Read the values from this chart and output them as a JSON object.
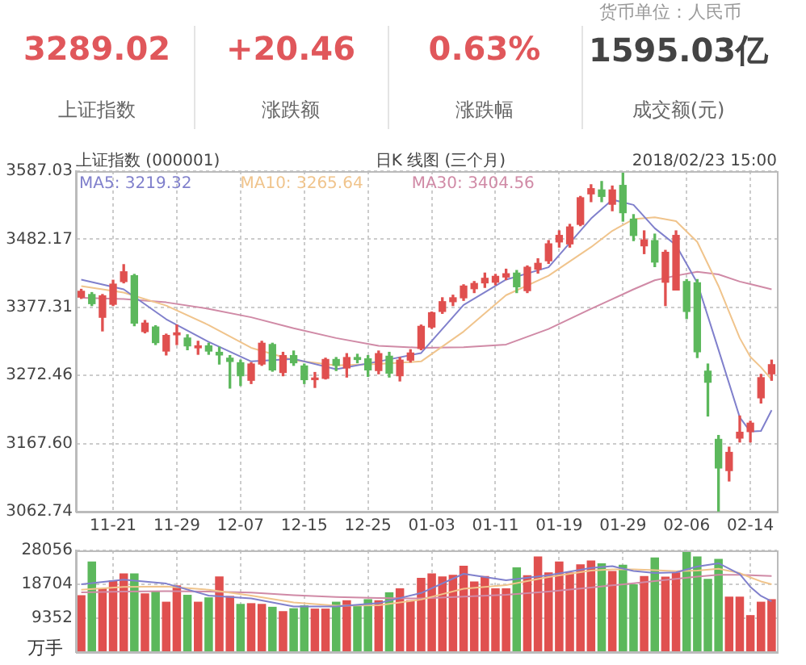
{
  "chart_data": [
    {
      "type": "other",
      "categories": [
        "上证指数",
        "涨跌额",
        "涨跌幅",
        "成交额(元)"
      ],
      "value_labels": [
        "3289.02",
        "+20.46",
        "0.63%",
        "1595.03亿"
      ],
      "colors": [
        "#e0575b",
        "#e0575b",
        "#e0575b",
        "#444444"
      ],
      "annotations": [
        "货币单位：人民币"
      ]
    },
    {
      "type": "candlestick",
      "title": "上证指数 (000001)",
      "subtitle": "日K 线图 (三个月)",
      "annotations": [
        "2018/02/23 15:00"
      ],
      "categories": [
        null,
        null,
        null,
        "11-21",
        null,
        null,
        null,
        null,
        null,
        "11-29",
        null,
        null,
        null,
        null,
        null,
        "12-07",
        null,
        null,
        null,
        null,
        null,
        "12-15",
        null,
        null,
        null,
        null,
        null,
        "12-25",
        null,
        null,
        null,
        null,
        null,
        "01-03",
        null,
        null,
        null,
        null,
        null,
        "01-11",
        null,
        null,
        null,
        null,
        null,
        "01-19",
        null,
        null,
        null,
        null,
        null,
        "01-29",
        null,
        null,
        null,
        null,
        null,
        "02-06",
        null,
        null,
        null,
        null,
        null,
        "02-14",
        null,
        null
      ],
      "ohlc": [
        [
          3393,
          3405,
          3391,
          3402
        ],
        [
          3397,
          3400,
          3380,
          3383
        ],
        [
          3362,
          3397,
          3341,
          3395
        ],
        [
          3382,
          3419,
          3380,
          3413
        ],
        [
          3417,
          3443,
          3415,
          3432
        ],
        [
          3426,
          3428,
          3349,
          3353
        ],
        [
          3340,
          3357,
          3338,
          3353
        ],
        [
          3347,
          3349,
          3320,
          3323
        ],
        [
          3310,
          3336,
          3304,
          3334
        ],
        [
          3335,
          3350,
          3320,
          3338
        ],
        [
          3330,
          3335,
          3312,
          3318
        ],
        [
          3315,
          3325,
          3305,
          3318
        ],
        [
          3318,
          3322,
          3305,
          3310
        ],
        [
          3308,
          3316,
          3290,
          3304
        ],
        [
          3299,
          3303,
          3253,
          3294
        ],
        [
          3292,
          3296,
          3257,
          3272
        ],
        [
          3265,
          3292,
          3260,
          3290
        ],
        [
          3290,
          3325,
          3288,
          3322
        ],
        [
          3320,
          3322,
          3279,
          3281
        ],
        [
          3277,
          3308,
          3272,
          3303
        ],
        [
          3303,
          3310,
          3288,
          3292
        ],
        [
          3287,
          3290,
          3260,
          3266
        ],
        [
          3266,
          3277,
          3254,
          3268
        ],
        [
          3268,
          3299,
          3267,
          3297
        ],
        [
          3297,
          3300,
          3280,
          3288
        ],
        [
          3284,
          3306,
          3270,
          3300
        ],
        [
          3300,
          3305,
          3292,
          3297
        ],
        [
          3298,
          3303,
          3271,
          3281
        ],
        [
          3280,
          3310,
          3275,
          3306
        ],
        [
          3302,
          3308,
          3270,
          3276
        ],
        [
          3272,
          3300,
          3264,
          3296
        ],
        [
          3296,
          3312,
          3293,
          3307
        ],
        [
          3314,
          3350,
          3312,
          3348
        ],
        [
          3347,
          3370,
          3345,
          3369
        ],
        [
          3371,
          3392,
          3368,
          3386
        ],
        [
          3386,
          3396,
          3380,
          3392
        ],
        [
          3392,
          3412,
          3388,
          3410
        ],
        [
          3406,
          3417,
          3400,
          3414
        ],
        [
          3415,
          3430,
          3408,
          3422
        ],
        [
          3416,
          3428,
          3412,
          3425
        ],
        [
          3424,
          3436,
          3420,
          3429
        ],
        [
          3430,
          3434,
          3400,
          3409
        ],
        [
          3403,
          3441,
          3400,
          3439
        ],
        [
          3436,
          3452,
          3430,
          3445
        ],
        [
          3449,
          3480,
          3445,
          3475
        ],
        [
          3478,
          3495,
          3470,
          3488
        ],
        [
          3475,
          3505,
          3470,
          3501
        ],
        [
          3505,
          3548,
          3503,
          3546
        ],
        [
          3552,
          3566,
          3540,
          3560
        ],
        [
          3558,
          3571,
          3540,
          3548
        ],
        [
          3536,
          3564,
          3526,
          3558
        ],
        [
          3565,
          3586,
          3510,
          3523
        ],
        [
          3513,
          3520,
          3480,
          3488
        ],
        [
          3472,
          3495,
          3460,
          3481
        ],
        [
          3480,
          3490,
          3440,
          3447
        ],
        [
          3416,
          3465,
          3380,
          3462
        ],
        [
          3404,
          3495,
          3404,
          3488
        ],
        [
          3417,
          3420,
          3360,
          3371
        ],
        [
          3415,
          3420,
          3300,
          3309
        ],
        [
          3279,
          3290,
          3210,
          3262
        ],
        [
          3174,
          3180,
          3063,
          3130
        ],
        [
          3126,
          3162,
          3110,
          3154
        ],
        [
          3176,
          3210,
          3170,
          3185
        ],
        [
          3186,
          3202,
          3170,
          3199
        ],
        [
          3238,
          3274,
          3230,
          3269
        ],
        [
          3275,
          3296,
          3265,
          3289
        ]
      ],
      "colors": [
        "#e0504f",
        "#5cb85c",
        "#e0504f",
        "#e0504f",
        "#e0504f",
        "#5cb85c",
        "#e0504f",
        "#5cb85c",
        "#e0504f",
        "#e0504f",
        "#5cb85c",
        "#e0504f",
        "#5cb85c",
        "#5cb85c",
        "#5cb85c",
        "#5cb85c",
        "#e0504f",
        "#e0504f",
        "#5cb85c",
        "#e0504f",
        "#5cb85c",
        "#5cb85c",
        "#e0504f",
        "#e0504f",
        "#5cb85c",
        "#e0504f",
        "#5cb85c",
        "#5cb85c",
        "#e0504f",
        "#5cb85c",
        "#e0504f",
        "#e0504f",
        "#e0504f",
        "#e0504f",
        "#e0504f",
        "#e0504f",
        "#e0504f",
        "#e0504f",
        "#e0504f",
        "#e0504f",
        "#e0504f",
        "#5cb85c",
        "#e0504f",
        "#e0504f",
        "#e0504f",
        "#e0504f",
        "#e0504f",
        "#e0504f",
        "#e0504f",
        "#5cb85c",
        "#e0504f",
        "#5cb85c",
        "#5cb85c",
        "#e0504f",
        "#5cb85c",
        "#e0504f",
        "#e0504f",
        "#5cb85c",
        "#5cb85c",
        "#5cb85c",
        "#5cb85c",
        "#e0504f",
        "#e0504f",
        "#e0504f",
        "#e0504f",
        "#e0504f"
      ],
      "series": [
        {
          "type": "line",
          "name": "MA5: 3219.32",
          "color": "#8080cc",
          "values": [
            3420,
            null,
            null,
            null,
            3405,
            null,
            null,
            null,
            3359,
            null,
            null,
            null,
            3324,
            null,
            null,
            null,
            3294,
            null,
            null,
            null,
            3298,
            null,
            null,
            null,
            3282,
            null,
            null,
            null,
            3294,
            null,
            null,
            null,
            3307,
            null,
            null,
            null,
            3381,
            null,
            null,
            null,
            3420,
            null,
            null,
            null,
            3439,
            null,
            null,
            null,
            3514,
            null,
            3543,
            null,
            3535,
            null,
            3499,
            null,
            3473,
            null,
            3415,
            null,
            3312,
            null,
            3208,
            3186,
            3187,
            3219
          ]
        },
        {
          "type": "line",
          "name": "MA10: 3265.64",
          "color": "#f0c48c",
          "values": [
            3410,
            null,
            null,
            null,
            3400,
            null,
            null,
            null,
            3380,
            null,
            null,
            null,
            3350,
            null,
            null,
            null,
            3315,
            null,
            null,
            null,
            3296,
            null,
            null,
            null,
            3288,
            null,
            null,
            null,
            3290,
            null,
            null,
            null,
            3294,
            null,
            null,
            null,
            3340,
            null,
            null,
            null,
            3396,
            null,
            null,
            null,
            3426,
            null,
            null,
            null,
            3470,
            null,
            3495,
            null,
            3513,
            null,
            3516,
            null,
            3510,
            null,
            3478,
            null,
            3410,
            null,
            3330,
            3301,
            3285,
            3266
          ]
        },
        {
          "type": "line",
          "name": "MA30: 3404.56",
          "color": "#d08aa6",
          "values": [
            3392,
            null,
            null,
            null,
            3390,
            null,
            null,
            null,
            3385,
            null,
            null,
            null,
            3375,
            null,
            null,
            null,
            3362,
            null,
            null,
            null,
            3345,
            null,
            null,
            null,
            3330,
            null,
            null,
            null,
            3318,
            null,
            null,
            null,
            3315,
            null,
            null,
            null,
            3316,
            null,
            null,
            null,
            3320,
            null,
            null,
            null,
            3344,
            null,
            null,
            null,
            3375,
            null,
            3390,
            null,
            3405,
            null,
            3419,
            null,
            3426,
            null,
            3432,
            null,
            3428,
            null,
            3417,
            3413,
            3409,
            3405
          ]
        }
      ],
      "ylim": [
        3062.74,
        3587.03
      ],
      "yticks": [
        3062.74,
        {
          "value": 3167.6,
          "label": "3167.60"
        },
        3272.46,
        3377.31,
        3482.17,
        3587.03
      ],
      "grid": true
    },
    {
      "type": "bar",
      "ylabel": "万手",
      "categories": [
        null,
        null,
        null,
        null,
        null,
        null,
        null,
        null,
        null,
        null,
        null,
        null,
        null,
        null,
        null,
        null,
        null,
        null,
        null,
        null,
        null,
        null,
        null,
        null,
        null,
        null,
        null,
        null,
        null,
        null,
        null,
        null,
        null,
        null,
        null,
        null,
        null,
        null,
        null,
        null,
        null,
        null,
        null,
        null,
        null,
        null,
        null,
        null,
        null,
        null,
        null,
        null,
        null,
        null,
        null,
        null,
        null,
        null,
        null,
        null,
        null,
        null,
        null,
        null,
        null,
        null
      ],
      "values": [
        15700,
        25000,
        17600,
        19800,
        21700,
        21700,
        16200,
        16900,
        13900,
        18400,
        15800,
        13900,
        15100,
        20900,
        15500,
        13300,
        13500,
        13300,
        12500,
        11300,
        12100,
        12900,
        12000,
        12000,
        13900,
        14300,
        12700,
        14600,
        14300,
        16500,
        17600,
        14300,
        20500,
        21700,
        20900,
        21300,
        23800,
        19500,
        21000,
        17600,
        17600,
        23400,
        21200,
        26400,
        22000,
        25000,
        22000,
        24200,
        25300,
        24500,
        22400,
        24100,
        18700,
        21000,
        26100,
        20800,
        22000,
        28000,
        26400,
        20200,
        25700,
        15300,
        15300,
        10200,
        13900,
        14600
      ],
      "colors": [
        "#e0504f",
        "#5cb85c",
        "#e0504f",
        "#e0504f",
        "#e0504f",
        "#5cb85c",
        "#e0504f",
        "#5cb85c",
        "#e0504f",
        "#e0504f",
        "#5cb85c",
        "#e0504f",
        "#5cb85c",
        "#e0504f",
        "#e0504f",
        "#5cb85c",
        "#e0504f",
        "#e0504f",
        "#5cb85c",
        "#e0504f",
        "#5cb85c",
        "#5cb85c",
        "#e0504f",
        "#e0504f",
        "#5cb85c",
        "#e0504f",
        "#5cb85c",
        "#5cb85c",
        "#e0504f",
        "#5cb85c",
        "#e0504f",
        "#e0504f",
        "#e0504f",
        "#e0504f",
        "#e0504f",
        "#e0504f",
        "#e0504f",
        "#e0504f",
        "#e0504f",
        "#e0504f",
        "#e0504f",
        "#5cb85c",
        "#e0504f",
        "#e0504f",
        "#e0504f",
        "#e0504f",
        "#e0504f",
        "#e0504f",
        "#e0504f",
        "#5cb85c",
        "#e0504f",
        "#5cb85c",
        "#5cb85c",
        "#e0504f",
        "#5cb85c",
        "#e0504f",
        "#e0504f",
        "#5cb85c",
        "#5cb85c",
        "#5cb85c",
        "#5cb85c",
        "#e0504f",
        "#e0504f",
        "#e0504f",
        "#e0504f",
        "#e0504f"
      ],
      "series": [
        {
          "type": "line",
          "color": "#8080cc",
          "values": [
            18700,
            null,
            null,
            null,
            20000,
            null,
            null,
            null,
            18900,
            null,
            null,
            null,
            15600,
            null,
            null,
            null,
            14800,
            null,
            null,
            null,
            12600,
            null,
            null,
            null,
            12600,
            null,
            null,
            null,
            13500,
            null,
            null,
            null,
            16300,
            null,
            null,
            null,
            21600,
            null,
            null,
            null,
            19800,
            null,
            null,
            null,
            21200,
            null,
            null,
            null,
            23200,
            null,
            23700,
            null,
            22400,
            null,
            21800,
            null,
            22000,
            null,
            23600,
            null,
            24500,
            null,
            21500,
            18000,
            15500,
            14000
          ]
        },
        {
          "type": "line",
          "color": "#f0c48c",
          "values": [
            17200,
            null,
            null,
            null,
            18000,
            null,
            null,
            null,
            18100,
            null,
            null,
            null,
            17200,
            null,
            null,
            null,
            15600,
            null,
            null,
            null,
            13700,
            null,
            null,
            null,
            12800,
            null,
            null,
            null,
            12900,
            null,
            null,
            null,
            14500,
            null,
            null,
            null,
            17500,
            null,
            null,
            null,
            18500,
            null,
            null,
            null,
            20700,
            null,
            null,
            null,
            22500,
            null,
            22800,
            null,
            22800,
            null,
            22600,
            null,
            22300,
            null,
            22500,
            null,
            23000,
            null,
            21800,
            20600,
            19500,
            18700
          ]
        },
        {
          "type": "line",
          "color": "#d08aa6",
          "values": [
            16500,
            null,
            null,
            null,
            16700,
            null,
            null,
            null,
            16800,
            null,
            null,
            null,
            16700,
            null,
            null,
            null,
            16400,
            null,
            null,
            null,
            15700,
            null,
            null,
            null,
            15200,
            null,
            null,
            null,
            14900,
            null,
            null,
            null,
            14800,
            null,
            null,
            null,
            15300,
            null,
            null,
            null,
            15800,
            null,
            null,
            null,
            16700,
            null,
            null,
            null,
            17800,
            null,
            18400,
            null,
            19000,
            null,
            19600,
            null,
            20200,
            null,
            20800,
            null,
            21300,
            null,
            21300,
            21200,
            21100,
            21000
          ]
        }
      ],
      "ylim": [
        0,
        28056
      ],
      "yticks": [
        {
          "value": 0,
          "label": null
        },
        9352,
        18704,
        28056
      ],
      "grid": true,
      "tick_labels": "y"
    }
  ]
}
